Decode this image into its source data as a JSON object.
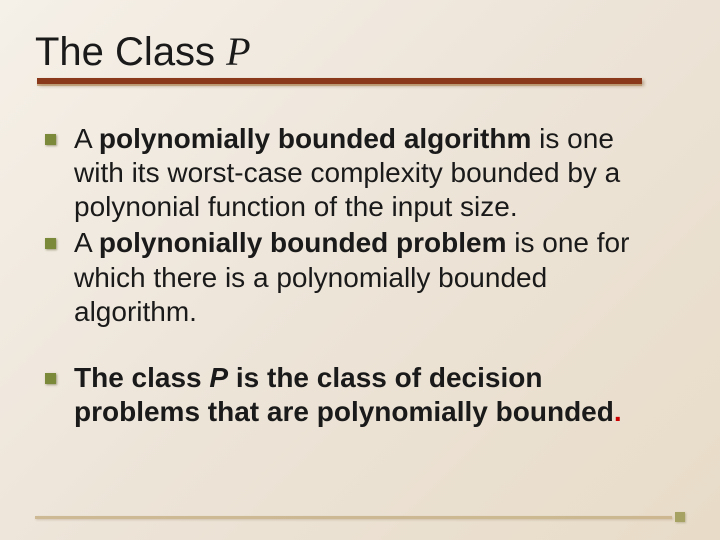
{
  "title": {
    "prefix": "The Class ",
    "italic_part": "P"
  },
  "colors": {
    "title_underline": "#8a3a1a",
    "bullet_marker": "#7a8a3a",
    "text": "#1a1a1a",
    "red_text": "#cc0000",
    "bottom_bar": "#c0a878"
  },
  "bullets": {
    "group1": [
      {
        "segments": [
          {
            "text": "A ",
            "bold": false
          },
          {
            "text": "polynomially bounded algorithm",
            "bold": true
          },
          {
            "text": " is one with its worst-case complexity bounded by a polynonial function of the input size.",
            "bold": false
          }
        ]
      },
      {
        "segments": [
          {
            "text": "A ",
            "bold": false
          },
          {
            "text": "polynonially bounded problem",
            "bold": true
          },
          {
            "text": " is one for which there is a polynomially bounded algorithm.",
            "bold": false
          }
        ]
      }
    ],
    "group2": [
      {
        "bold_all": true,
        "segments": [
          {
            "text": "The class "
          },
          {
            "text": "P",
            "italic": true
          },
          {
            "text": " is the class of decision problems that are polynomially bounded"
          },
          {
            "text": ".",
            "red": true
          }
        ]
      }
    ]
  },
  "fonts": {
    "title_size": 40,
    "body_size": 28
  }
}
